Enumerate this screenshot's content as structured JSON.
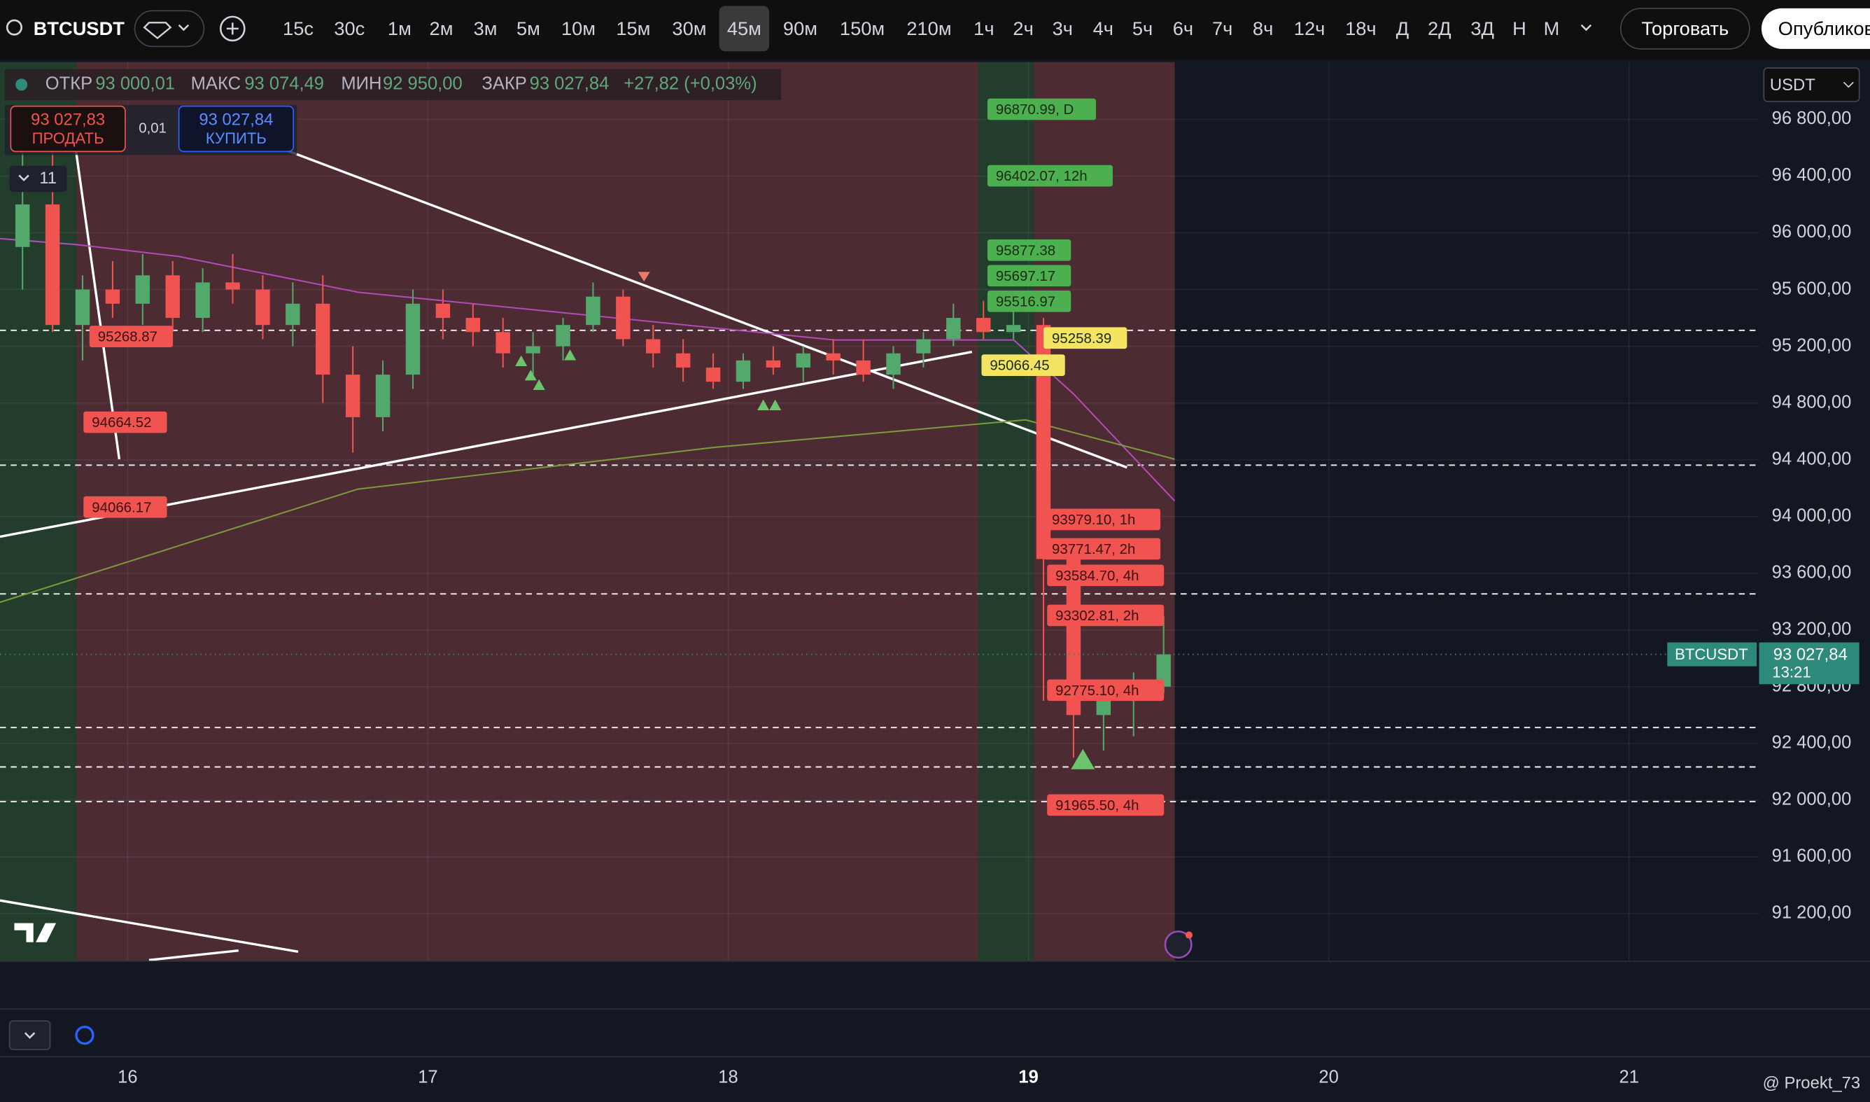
{
  "toolbar": {
    "symbol": "BTCUSDT",
    "intervals": [
      "15с",
      "30с",
      "1м",
      "2м",
      "3м",
      "5м",
      "10м",
      "15м",
      "30м",
      "45м",
      "90м",
      "150м",
      "210м",
      "1ч",
      "2ч",
      "3ч",
      "4ч",
      "5ч",
      "6ч",
      "7ч",
      "8ч",
      "12ч",
      "18ч",
      "Д",
      "2Д",
      "3Д",
      "Н",
      "М"
    ],
    "trade": "Торговать",
    "publish": "Опубликовать"
  },
  "legend": {
    "open_label": "ОТКР",
    "open": "93 000,01",
    "high_label": "МАКС",
    "high": "93 074,49",
    "low_label": "МИН",
    "low": "92 950,00",
    "close_label": "ЗАКР",
    "close": "93 027,84",
    "change": "+27,82 (+0,03%)"
  },
  "order": {
    "sell_price": "93 027,83",
    "sell": "ПРОДАТЬ",
    "spread": "0,01",
    "buy_price": "93 027,84",
    "buy": "КУПИТЬ"
  },
  "indicators": "11",
  "currency": "USDT",
  "watermark": "@ Proekt_73",
  "chart_data": {
    "type": "candlestick",
    "x": [
      15.65,
      15.75,
      15.85,
      15.95,
      16.05,
      16.15,
      16.25,
      16.35,
      16.45,
      16.55,
      16.65,
      16.75,
      16.85,
      16.95,
      17.05,
      17.15,
      17.25,
      17.35,
      17.45,
      17.55,
      17.65,
      17.75,
      17.85,
      17.95,
      18.05,
      18.15,
      18.25,
      18.35,
      18.45,
      18.55,
      18.65,
      18.75,
      18.85,
      18.95,
      19.05,
      19.15,
      19.25,
      19.35,
      19.45
    ],
    "open": [
      95900,
      96200,
      95350,
      95600,
      95500,
      95700,
      95400,
      95650,
      95600,
      95350,
      95500,
      95000,
      94700,
      95000,
      95500,
      95400,
      95300,
      95150,
      95200,
      95350,
      95550,
      95250,
      95150,
      95050,
      94950,
      95100,
      95050,
      95150,
      95100,
      95000,
      95150,
      95250,
      95400,
      95300,
      95350,
      93700,
      92600,
      92700,
      92800
    ],
    "high": [
      96600,
      96700,
      95700,
      95800,
      95850,
      95800,
      95750,
      95850,
      95700,
      95650,
      95700,
      95200,
      95100,
      95600,
      95600,
      95500,
      95400,
      95300,
      95400,
      95650,
      95600,
      95350,
      95250,
      95150,
      95150,
      95200,
      95200,
      95250,
      95250,
      95200,
      95300,
      95500,
      95520,
      95500,
      95400,
      93800,
      92800,
      92900,
      93300
    ],
    "low": [
      95600,
      95300,
      95100,
      95400,
      95350,
      95300,
      95300,
      95500,
      95250,
      95200,
      94800,
      94450,
      94600,
      94900,
      95250,
      95200,
      95050,
      95000,
      95100,
      95300,
      95200,
      95050,
      94950,
      94900,
      94900,
      95000,
      94950,
      95000,
      94950,
      94900,
      95050,
      95200,
      95250,
      95250,
      92700,
      92300,
      92350,
      92450,
      92750
    ],
    "close": [
      96200,
      95350,
      95600,
      95500,
      95700,
      95400,
      95650,
      95600,
      95350,
      95500,
      95000,
      94700,
      95000,
      95500,
      95400,
      95300,
      95150,
      95200,
      95350,
      95550,
      95250,
      95150,
      95050,
      94950,
      95100,
      95050,
      95150,
      95100,
      95000,
      95150,
      95250,
      95400,
      95300,
      95350,
      93700,
      92600,
      92700,
      92800,
      93027.84
    ],
    "up_color": "#53a86b",
    "down_color": "#f05350",
    "xlim": [
      15.575,
      21.433
    ],
    "xticks": [
      16,
      17,
      18,
      19,
      20,
      21
    ],
    "ylim": [
      90864,
      97204
    ],
    "yticks": [
      {
        "value": 96800,
        "label": "96 800,00"
      },
      {
        "value": 96400,
        "label": "96 400,00"
      },
      {
        "value": 96000,
        "label": "96 000,00"
      },
      {
        "value": 95600,
        "label": "95 600,00"
      },
      {
        "value": 95200,
        "label": "95 200,00"
      },
      {
        "value": 94800,
        "label": "94 800,00"
      },
      {
        "value": 94400,
        "label": "94 400,00"
      },
      {
        "value": 94000,
        "label": "94 000,00"
      },
      {
        "value": 93600,
        "label": "93 600,00"
      },
      {
        "value": 93200,
        "label": "93 200,00"
      },
      {
        "value": 92800,
        "label": "92 800,00"
      },
      {
        "value": 92400,
        "label": "92 400,00"
      },
      {
        "value": 92000,
        "label": "92 000,00"
      },
      {
        "value": 91600,
        "label": "91 600,00"
      },
      {
        "value": 91200,
        "label": "91 200,00"
      }
    ],
    "grid": true,
    "sessions": [
      {
        "from": 15.575,
        "to": 15.829,
        "color": "#233d2c"
      },
      {
        "from": 15.829,
        "to": 18.832,
        "color": "#4d2b33"
      },
      {
        "from": 18.832,
        "to": 19.018,
        "color": "#233d2c"
      },
      {
        "from": 19.018,
        "to": 19.487,
        "color": "#4d2b33"
      }
    ],
    "lines": [
      {
        "color": "#b04cb8",
        "x": [
          15.575,
          15.829,
          16.171,
          16.767,
          17.561,
          18.355,
          18.951,
          19.149,
          19.487
        ],
        "values": [
          95959,
          95917,
          95833,
          95581,
          95413,
          95244,
          95244,
          94866,
          94109
        ]
      },
      {
        "color": "#7a9a3c",
        "x": [
          15.575,
          16.767,
          17.958,
          18.99,
          19.487
        ],
        "values": [
          93395,
          94193,
          94488,
          94681,
          94404
        ]
      }
    ],
    "levels": [
      95312,
      94362,
      93454,
      92512,
      92234,
      91990
    ],
    "annotations": [
      {
        "value": 95268.87,
        "label": "95268.87",
        "color": "#f05350"
      },
      {
        "value": 94664.52,
        "label": "94664.52",
        "color": "#f05350"
      },
      {
        "value": 94066.17,
        "label": "94066.17",
        "color": "#f05350"
      },
      {
        "value": 96870.99,
        "label": "96870.99, D",
        "color": "#4caf50"
      },
      {
        "value": 96402.07,
        "label": "96402.07, 12h",
        "color": "#4caf50"
      },
      {
        "value": 95877.38,
        "label": "95877.38",
        "color": "#4caf50"
      },
      {
        "value": 95697.17,
        "label": "95697.17",
        "color": "#4caf50"
      },
      {
        "value": 95516.97,
        "label": "95516.97",
        "color": "#4caf50"
      },
      {
        "value": 95258.39,
        "label": "95258.39",
        "color": "#f5e462"
      },
      {
        "value": 95066.45,
        "label": "95066.45",
        "color": "#f5e462"
      },
      {
        "value": 93979.1,
        "label": "93979.10, 1h",
        "color": "#f05350"
      },
      {
        "value": 93771.47,
        "label": "93771.47, 2h",
        "color": "#f05350"
      },
      {
        "value": 93584.7,
        "label": "93584.70, 4h",
        "color": "#f05350"
      },
      {
        "value": 93302.81,
        "label": "93302.81, 2h",
        "color": "#f05350"
      },
      {
        "value": 92775.1,
        "label": "92775.10, 4h",
        "color": "#f05350"
      },
      {
        "value": 91965.5,
        "label": "91965.50, 4h",
        "color": "#f05350"
      }
    ],
    "last_price": {
      "symbol": "BTCUSDT",
      "value": 93027.84,
      "label": "93 027,84",
      "countdown": "13:21",
      "color": "#2e8a7a"
    }
  }
}
